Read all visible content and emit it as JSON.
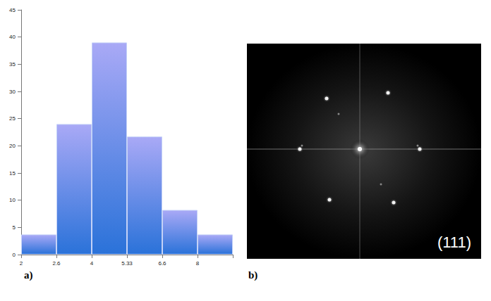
{
  "chart_data": {
    "type": "bar",
    "categories": [
      "2",
      "2.6",
      "4",
      "5.33",
      "6.6",
      "8"
    ],
    "values": [
      3.7,
      24,
      39,
      21.7,
      8.2,
      3.7
    ],
    "color": "#2a72d9",
    "ylim": [
      0,
      45
    ],
    "yticks": [
      0,
      5,
      10,
      15,
      20,
      25,
      30,
      35,
      40,
      45
    ],
    "grid": false
  },
  "panel_labels": [
    "a)",
    "b)"
  ],
  "image_label": "(111)"
}
